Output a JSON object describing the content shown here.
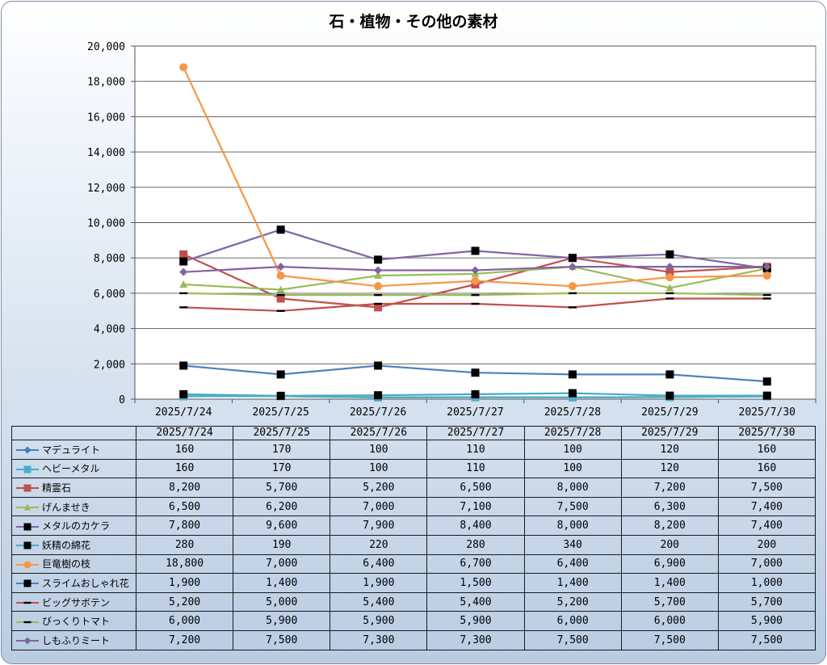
{
  "chart_data": {
    "type": "line",
    "title": "石・植物・その他の素材",
    "categories": [
      "2025/7/24",
      "2025/7/25",
      "2025/7/26",
      "2025/7/27",
      "2025/7/28",
      "2025/7/29",
      "2025/7/30"
    ],
    "ylim": [
      0,
      20000
    ],
    "yticks": [
      0,
      2000,
      4000,
      6000,
      8000,
      10000,
      12000,
      14000,
      16000,
      18000,
      20000
    ],
    "ytick_labels": [
      "0",
      "2,000",
      "4,000",
      "6,000",
      "8,000",
      "10,000",
      "12,000",
      "14,000",
      "16,000",
      "18,000",
      "20,000"
    ],
    "grid": true,
    "legend": "data-table-bottom",
    "series": [
      {
        "name": "マデュライト",
        "values": [
          160,
          170,
          100,
          110,
          100,
          120,
          160
        ],
        "labels": [
          "160",
          "170",
          "100",
          "110",
          "100",
          "120",
          "160"
        ],
        "color": "#4a7ebb",
        "marker": "diamond"
      },
      {
        "name": "ヘビーメタル",
        "values": [
          160,
          170,
          100,
          110,
          100,
          120,
          160
        ],
        "labels": [
          "160",
          "170",
          "100",
          "110",
          "100",
          "120",
          "160"
        ],
        "color": "#4bacc6",
        "marker": "square"
      },
      {
        "name": "精霊石",
        "values": [
          8200,
          5700,
          5200,
          6500,
          8000,
          7200,
          7500
        ],
        "labels": [
          "8,200",
          "5,700",
          "5,200",
          "6,500",
          "8,000",
          "7,200",
          "7,500"
        ],
        "color": "#c0504d",
        "marker": "square"
      },
      {
        "name": "げんませき",
        "values": [
          6500,
          6200,
          7000,
          7100,
          7500,
          6300,
          7400
        ],
        "labels": [
          "6,500",
          "6,200",
          "7,000",
          "7,100",
          "7,500",
          "6,300",
          "7,400"
        ],
        "color": "#9bbb59",
        "marker": "triangle"
      },
      {
        "name": "メタルのカケラ",
        "values": [
          7800,
          9600,
          7900,
          8400,
          8000,
          8200,
          7400
        ],
        "labels": [
          "7,800",
          "9,600",
          "7,900",
          "8,400",
          "8,000",
          "8,200",
          "7,400"
        ],
        "color": "#8064a2",
        "marker": "square-black"
      },
      {
        "name": "妖精の綿花",
        "values": [
          280,
          190,
          220,
          280,
          340,
          200,
          200
        ],
        "labels": [
          "280",
          "190",
          "220",
          "280",
          "340",
          "200",
          "200"
        ],
        "color": "#4bacc6",
        "marker": "square-black"
      },
      {
        "name": "巨竜樹の枝",
        "values": [
          18800,
          7000,
          6400,
          6700,
          6400,
          6900,
          7000
        ],
        "labels": [
          "18,800",
          "7,000",
          "6,400",
          "6,700",
          "6,400",
          "6,900",
          "7,000"
        ],
        "color": "#f79646",
        "marker": "circle"
      },
      {
        "name": "スライムおしゃれ花",
        "values": [
          1900,
          1400,
          1900,
          1500,
          1400,
          1400,
          1000
        ],
        "labels": [
          "1,900",
          "1,400",
          "1,900",
          "1,500",
          "1,400",
          "1,400",
          "1,000"
        ],
        "color": "#4f81bd",
        "marker": "square-black"
      },
      {
        "name": "ビッグサボテン",
        "values": [
          5200,
          5000,
          5400,
          5400,
          5200,
          5700,
          5700
        ],
        "labels": [
          "5,200",
          "5,000",
          "5,400",
          "5,400",
          "5,200",
          "5,700",
          "5,700"
        ],
        "color": "#c0504d",
        "marker": "dash"
      },
      {
        "name": "びっくりトマト",
        "values": [
          6000,
          5900,
          5900,
          5900,
          6000,
          6000,
          5900
        ],
        "labels": [
          "6,000",
          "5,900",
          "5,900",
          "5,900",
          "6,000",
          "6,000",
          "5,900"
        ],
        "color": "#9bbb59",
        "marker": "dash"
      },
      {
        "name": "しもふりミート",
        "values": [
          7200,
          7500,
          7300,
          7300,
          7500,
          7500,
          7500
        ],
        "labels": [
          "7,200",
          "7,500",
          "7,300",
          "7,300",
          "7,500",
          "7,500",
          "7,500"
        ],
        "color": "#8064a2",
        "marker": "diamond"
      }
    ]
  }
}
